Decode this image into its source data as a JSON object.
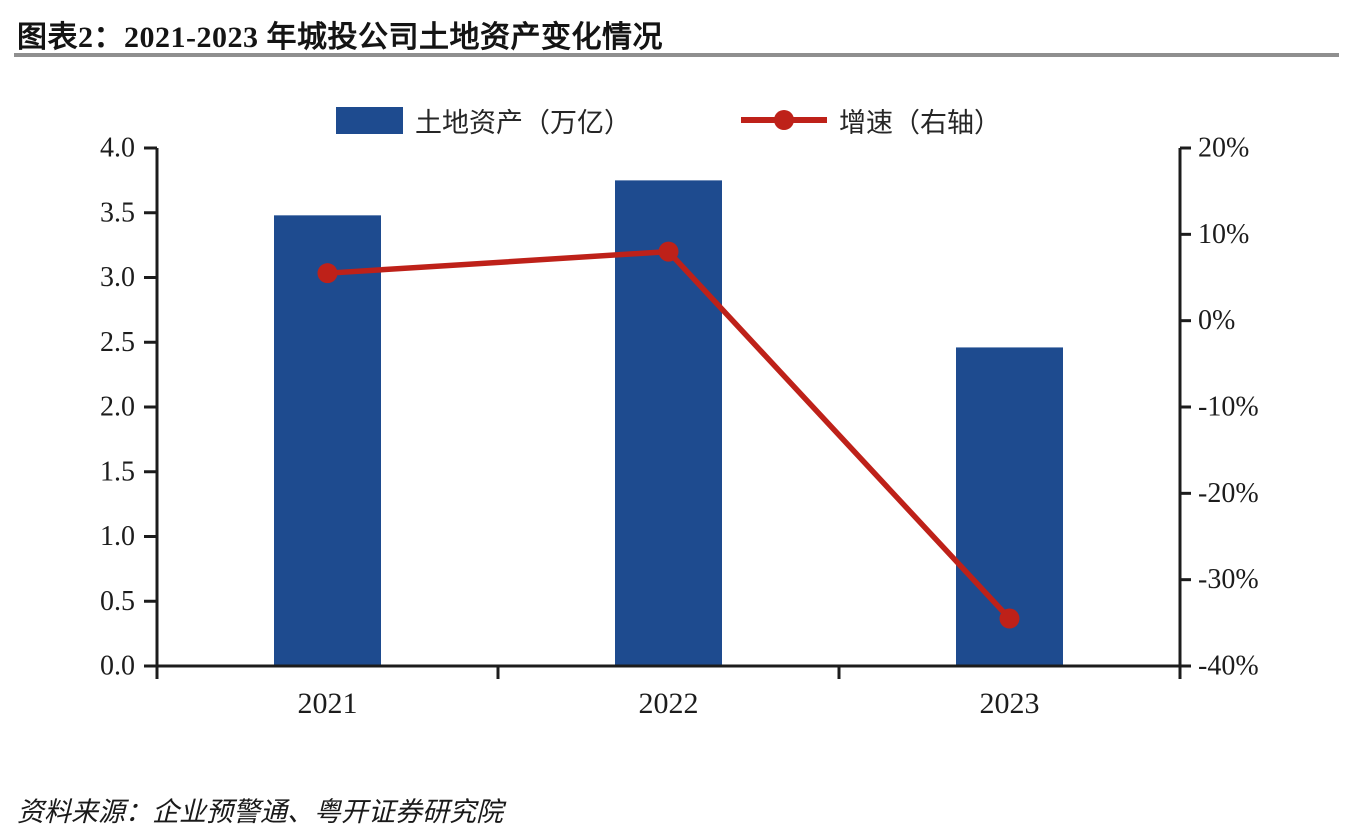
{
  "header": {
    "title": "图表2：2021-2023 年城投公司土地资产变化情况"
  },
  "legend": [
    {
      "label": "土地资产（万亿）",
      "type": "bar",
      "color": "#1e4b8f"
    },
    {
      "label": "增速（右轴）",
      "type": "line",
      "color": "#be2119"
    }
  ],
  "source": {
    "text": "资料来源：企业预警通、粤开证券研究院"
  },
  "colors": {
    "bar": "#1e4b8f",
    "line": "#be2119",
    "axis": "#1c1c1c",
    "title_rule": "#8f8f8f"
  },
  "chart_data": {
    "type": "bar",
    "subtype": "bar+line dual axis",
    "title": "2021-2023 年城投公司土地资产变化情况",
    "categories": [
      "2021",
      "2022",
      "2023"
    ],
    "series": [
      {
        "name": "土地资产（万亿）",
        "type": "bar",
        "axis": "left",
        "color": "#1e4b8f",
        "values": [
          3.48,
          3.75,
          2.46
        ]
      },
      {
        "name": "增速（右轴）",
        "type": "line",
        "axis": "right",
        "color": "#be2119",
        "values": [
          5.5,
          8.0,
          -34.5
        ]
      }
    ],
    "left_axis": {
      "min": 0,
      "max": 4,
      "step": 0.5,
      "tick_labels": [
        "0.0",
        "0.5",
        "1.0",
        "1.5",
        "2.0",
        "2.5",
        "3.0",
        "3.5",
        "4.0"
      ]
    },
    "right_axis": {
      "min": -40,
      "max": 20,
      "step": 10,
      "tick_labels": [
        "-40%",
        "-30%",
        "-20%",
        "-10%",
        "0%",
        "10%",
        "20%"
      ],
      "unit": "%"
    },
    "grid": false,
    "legend_position": "top"
  }
}
